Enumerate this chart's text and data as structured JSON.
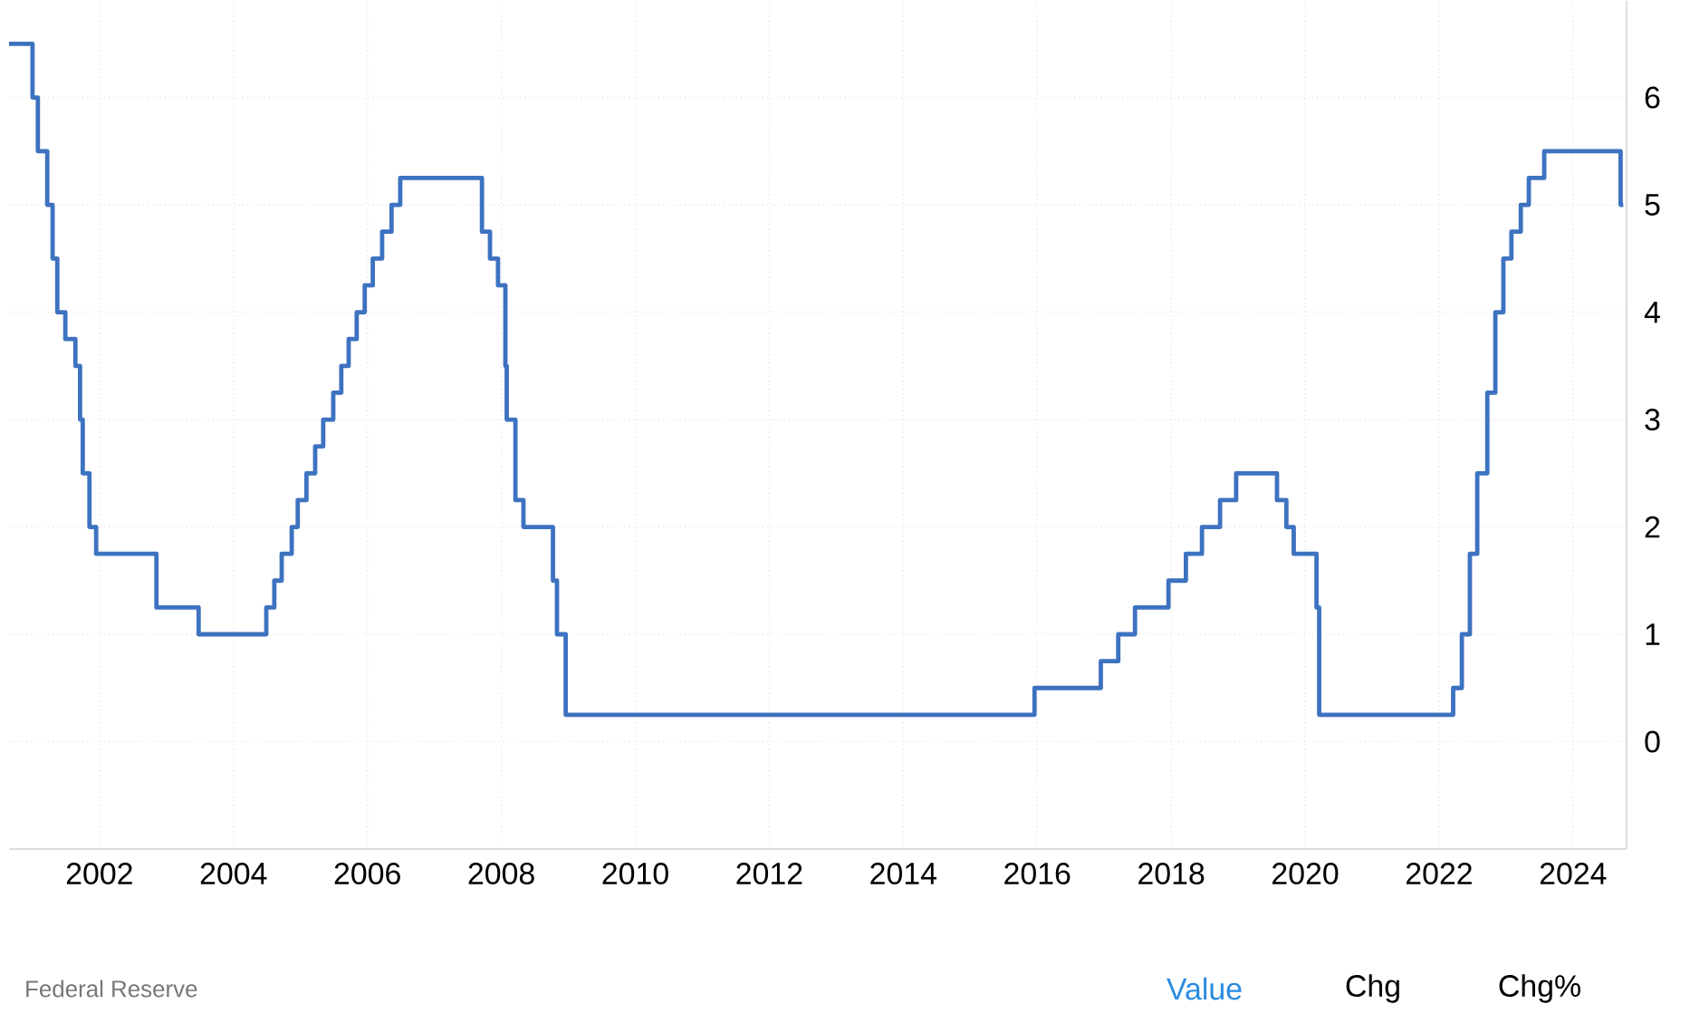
{
  "chart_data": {
    "type": "step",
    "color": "#3d72c0",
    "x": [
      2000.65,
      2001.0,
      2001.08,
      2001.22,
      2001.3,
      2001.37,
      2001.49,
      2001.64,
      2001.71,
      2001.75,
      2001.85,
      2001.95,
      2002.85,
      2003.48,
      2004.49,
      2004.61,
      2004.72,
      2004.87,
      2004.96,
      2005.09,
      2005.22,
      2005.34,
      2005.49,
      2005.61,
      2005.72,
      2005.84,
      2005.96,
      2006.08,
      2006.22,
      2006.36,
      2006.49,
      2007.71,
      2007.83,
      2007.95,
      2008.06,
      2008.08,
      2008.21,
      2008.33,
      2008.77,
      2008.83,
      2008.96,
      2015.96,
      2016.95,
      2017.21,
      2017.46,
      2017.96,
      2018.22,
      2018.46,
      2018.73,
      2018.97,
      2019.58,
      2019.72,
      2019.83,
      2020.17,
      2020.21,
      2022.21,
      2022.34,
      2022.46,
      2022.57,
      2022.72,
      2022.84,
      2022.96,
      2023.08,
      2023.22,
      2023.34,
      2023.57,
      2024.71,
      2024.75
    ],
    "values": [
      6.5,
      6.0,
      5.5,
      5.0,
      4.5,
      4.0,
      3.75,
      3.5,
      3.0,
      2.5,
      2.0,
      1.75,
      1.25,
      1.0,
      1.25,
      1.5,
      1.75,
      2.0,
      2.25,
      2.5,
      2.75,
      3.0,
      3.25,
      3.5,
      3.75,
      4.0,
      4.25,
      4.5,
      4.75,
      5.0,
      5.25,
      4.75,
      4.5,
      4.25,
      3.5,
      3.0,
      2.25,
      2.0,
      1.5,
      1.0,
      0.25,
      0.5,
      0.75,
      1.0,
      1.25,
      1.5,
      1.75,
      2.0,
      2.25,
      2.5,
      2.25,
      2.0,
      1.75,
      1.25,
      0.25,
      0.5,
      1.0,
      1.75,
      2.5,
      3.25,
      4.0,
      4.5,
      4.75,
      5.0,
      5.25,
      5.5,
      5.0,
      5.0
    ],
    "xlim": [
      2000.65,
      2024.8
    ],
    "ylim": [
      -1,
      6.9
    ],
    "xticks": [
      2002,
      2004,
      2006,
      2008,
      2010,
      2012,
      2014,
      2016,
      2018,
      2020,
      2022,
      2024
    ],
    "yticks": [
      0,
      1,
      2,
      3,
      4,
      5,
      6
    ],
    "grid": true,
    "annotations": [
      "Federal Reserve",
      "Value",
      "Chg",
      "Chg%"
    ]
  }
}
